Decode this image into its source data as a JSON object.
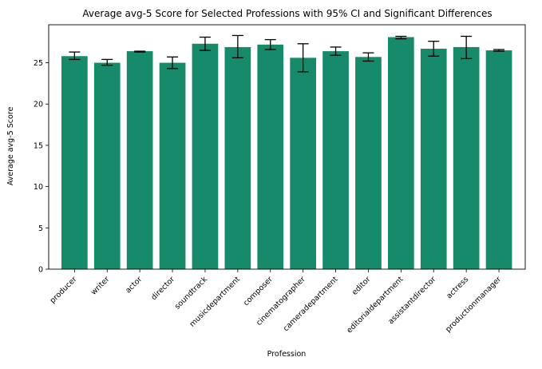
{
  "chart_data": {
    "type": "bar",
    "title": "Average avg-5 Score for Selected Professions with 95% CI and Significant Differences",
    "xlabel": "Profession",
    "ylabel": "Average avg-5 Score",
    "ylim": [
      0,
      29.6
    ],
    "yticks": [
      0,
      5,
      10,
      15,
      20,
      25
    ],
    "grid": false,
    "bar_color": "#168a6a",
    "categories": [
      "producer",
      "writer",
      "actor",
      "director",
      "soundtrack",
      "musicdepartment",
      "composer",
      "cinematographer",
      "cameradepartment",
      "editor",
      "editorialdepartment",
      "assistantdirector",
      "actress",
      "productionmanager"
    ],
    "values": [
      25.8,
      25.0,
      26.4,
      25.0,
      27.3,
      26.9,
      27.2,
      25.6,
      26.4,
      25.7,
      28.1,
      26.7,
      26.9,
      26.5
    ],
    "error_low": [
      25.4,
      24.7,
      26.3,
      24.3,
      26.5,
      25.6,
      26.6,
      23.9,
      25.9,
      25.2,
      27.9,
      25.8,
      25.5,
      26.4
    ],
    "error_high": [
      26.3,
      25.4,
      26.4,
      25.7,
      28.1,
      28.3,
      27.8,
      27.3,
      26.9,
      26.2,
      28.2,
      27.6,
      28.2,
      26.6
    ]
  }
}
